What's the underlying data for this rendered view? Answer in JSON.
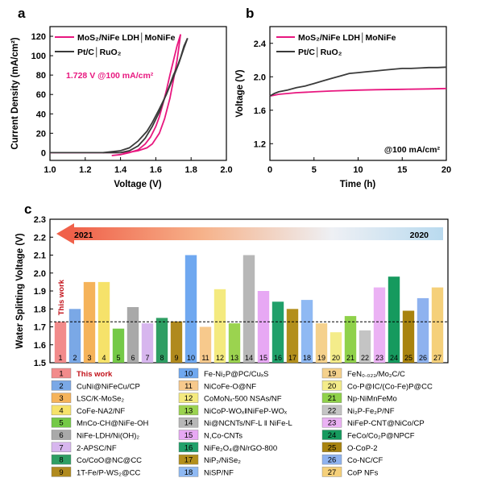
{
  "panels": {
    "a": {
      "label": "a",
      "xlabel": "Voltage (V)",
      "ylabel": "Current Density (mA/cm²)",
      "x_ticks": [
        "1.0",
        "1.2",
        "1.4",
        "1.6",
        "1.8",
        "2.0"
      ],
      "y_ticks": [
        "0",
        "20",
        "40",
        "60",
        "80",
        "100",
        "120"
      ],
      "legend": [
        {
          "name": "MoS₂/NiFe LDH│MoNiFe",
          "color": "#e8177f"
        },
        {
          "name": "Pt/C│RuO₂",
          "color": "#3a3a3a"
        }
      ],
      "annotation": "1.728 V @100 mA/cm²",
      "annotation_color": "#e8177f"
    },
    "b": {
      "label": "b",
      "xlabel": "Time (h)",
      "ylabel": "Voltage (V)",
      "x_ticks": [
        "0",
        "5",
        "10",
        "15",
        "20"
      ],
      "y_ticks": [
        "1.2",
        "1.6",
        "2.0",
        "2.4"
      ],
      "legend": [
        {
          "name": "MoS₂/NiFe LDH│MoNiFe",
          "color": "#e8177f"
        },
        {
          "name": "Pt/C│RuO₂",
          "color": "#3a3a3a"
        }
      ],
      "annotation": "@100 mA/cm²"
    },
    "c": {
      "label": "c",
      "ylabel": "Water Splitting Voltage (V)",
      "y_ticks": [
        "1.5",
        "1.6",
        "1.7",
        "1.8",
        "1.9",
        "2.0",
        "2.1",
        "2.2",
        "2.3"
      ],
      "arrow_start": "2021",
      "arrow_end": "2020",
      "this_work_label": "This work"
    }
  },
  "chart_data": [
    {
      "type": "line",
      "panel": "a",
      "xlabel": "Voltage (V)",
      "ylabel": "Current Density (mA/cm²)",
      "xlim": [
        1.0,
        2.0
      ],
      "ylim": [
        -8,
        130
      ],
      "series": [
        {
          "name": "MoS₂/NiFe LDH│MoNiFe",
          "color": "#e8177f",
          "x": [
            1.0,
            1.3,
            1.4,
            1.45,
            1.5,
            1.55,
            1.58,
            1.62,
            1.65,
            1.68,
            1.7,
            1.72,
            1.73,
            1.74
          ],
          "y": [
            0,
            0,
            0,
            0.5,
            2,
            5,
            9,
            20,
            35,
            56,
            75,
            95,
            108,
            122
          ]
        },
        {
          "name": "MoS₂/NiFe LDH│MoNiFe (reverse)",
          "color": "#e8177f",
          "x": [
            1.74,
            1.72,
            1.7,
            1.68,
            1.66,
            1.64,
            1.62,
            1.6,
            1.57,
            1.54,
            1.5,
            1.45,
            1.4,
            1.35
          ],
          "y": [
            122,
            110,
            95,
            80,
            64,
            50,
            37,
            27,
            16,
            9,
            3,
            0,
            -2,
            -3
          ]
        },
        {
          "name": "Pt/C│RuO₂",
          "color": "#3a3a3a",
          "x": [
            1.0,
            1.3,
            1.4,
            1.45,
            1.5,
            1.55,
            1.58,
            1.62,
            1.66,
            1.7,
            1.73,
            1.76,
            1.78
          ],
          "y": [
            0,
            0,
            2,
            5,
            12,
            22,
            31,
            45,
            60,
            78,
            92,
            108,
            118
          ]
        },
        {
          "name": "Pt/C│RuO₂ (reverse)",
          "color": "#3a3a3a",
          "x": [
            1.78,
            1.76,
            1.74,
            1.72,
            1.7,
            1.68,
            1.65,
            1.62,
            1.58,
            1.54,
            1.5,
            1.45,
            1.4,
            1.3
          ],
          "y": [
            118,
            110,
            98,
            88,
            80,
            70,
            56,
            42,
            27,
            15,
            7,
            2,
            0,
            0
          ]
        }
      ]
    },
    {
      "type": "line",
      "panel": "b",
      "xlabel": "Time (h)",
      "ylabel": "Voltage (V)",
      "xlim": [
        0,
        20
      ],
      "ylim": [
        1.0,
        2.6
      ],
      "series": [
        {
          "name": "MoS₂/NiFe LDH│MoNiFe",
          "color": "#e8177f",
          "x": [
            0,
            0.5,
            1,
            2,
            3,
            5,
            7,
            10,
            12,
            15,
            18,
            20
          ],
          "y": [
            1.77,
            1.78,
            1.79,
            1.8,
            1.81,
            1.82,
            1.83,
            1.84,
            1.845,
            1.85,
            1.855,
            1.86
          ]
        },
        {
          "name": "Pt/C│RuO₂",
          "color": "#3a3a3a",
          "x": [
            0,
            0.5,
            1,
            2,
            3,
            4,
            5,
            6,
            7,
            8,
            9,
            10,
            11,
            12,
            13,
            14,
            15,
            16,
            17,
            18,
            19,
            20
          ],
          "y": [
            1.77,
            1.8,
            1.82,
            1.84,
            1.87,
            1.89,
            1.92,
            1.95,
            1.98,
            2.01,
            2.04,
            2.05,
            2.06,
            2.07,
            2.08,
            2.09,
            2.1,
            2.1,
            2.105,
            2.11,
            2.11,
            2.115
          ]
        }
      ]
    },
    {
      "type": "bar",
      "panel": "c",
      "ylabel": "Water Splitting Voltage (V)",
      "ylim": [
        1.5,
        2.3
      ],
      "reference_line": 1.728,
      "categories": [
        "1",
        "2",
        "3",
        "4",
        "5",
        "6",
        "7",
        "8",
        "9",
        "10",
        "11",
        "12",
        "13",
        "14",
        "15",
        "16",
        "17",
        "18",
        "19",
        "20",
        "21",
        "22",
        "23",
        "24",
        "25",
        "26",
        "27"
      ],
      "values": [
        1.728,
        1.8,
        1.95,
        1.95,
        1.69,
        1.81,
        1.72,
        1.75,
        1.73,
        2.1,
        1.7,
        1.91,
        1.72,
        2.1,
        1.9,
        1.84,
        1.8,
        1.85,
        1.72,
        1.67,
        1.76,
        1.68,
        1.92,
        1.98,
        1.79,
        1.86,
        1.92
      ],
      "colors": [
        "#f28b8b",
        "#7aa8e6",
        "#f5b35a",
        "#f6e26a",
        "#74c947",
        "#a9a9a9",
        "#d7b6ee",
        "#2e9e63",
        "#b08a1e",
        "#6fa8f0",
        "#f7c98c",
        "#f4ea7f",
        "#9bd34f",
        "#b7b7b7",
        "#e7a8f4",
        "#20a06a",
        "#b38f1c",
        "#8fb9f3",
        "#f5d18c",
        "#f4ec8a",
        "#8fd14a",
        "#c4c4c4",
        "#ebb2f4",
        "#169a5e",
        "#a8830f",
        "#8eb2ef",
        "#f5d07a"
      ],
      "legend": [
        "This work",
        "CuNi@NiFeCu/CP",
        "LSC/K-MoSe₂",
        "CoFe-NA2/NF",
        "MnCo-CH@NiFe-OH",
        "NiFe-LDH/Ni(OH)₂",
        "2-APSC/NF",
        "Co/CoO@NC@CC",
        "1T-Fe/P-WS₂@CC",
        "Fe-Ni₂P@PC/CuₓS",
        "NiCoFe-O@NF",
        "CoMoNₓ-500 NSAs/NF",
        "NiCoP-WOₓ‖NiFeP-WOₓ",
        "Ni@NCNTs/NF-L ‖ NiFe-L",
        "N,Co-CNTs",
        "NiFe₂O₄@N/rGO-800",
        "NiP₂/NiSe₂",
        "NiSP/NF",
        "FeN₀.₀₂₃/Mo₂C/C",
        "Co-P@IC/(Co-Fe)P@CC",
        "Np-NiMnFeMo",
        "Ni₂P-Fe₂P/NF",
        "NiFeP-CNT@NiCo/CP",
        "FeCo/Co₂P@NPCF",
        "O-CoP-2",
        "Co-NC/CF",
        "CoP NFs"
      ]
    }
  ]
}
